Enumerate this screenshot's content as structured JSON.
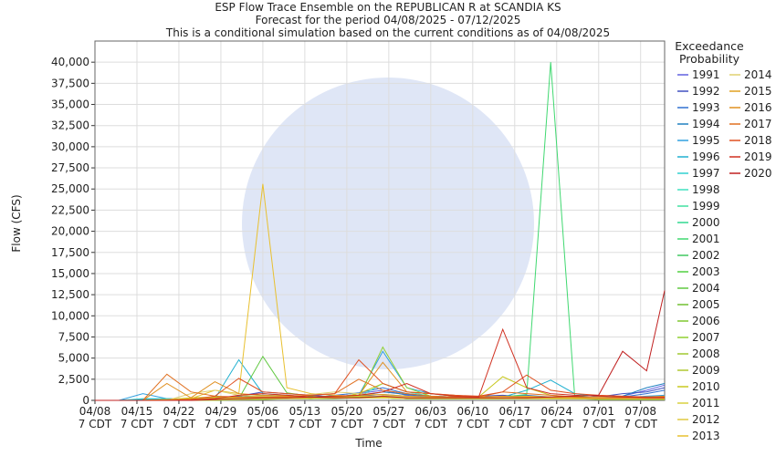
{
  "chart_data": {
    "type": "line",
    "title": "ESP Flow Trace Ensemble on the REPUBLICAN R at SCANDIA KS",
    "subtitle": "Forecast for the period 04/08/2025 - 07/12/2025",
    "note": "This is a conditional simulation based on the current conditions as of 04/08/2025",
    "x_label": "Time",
    "y_label": "Flow (CFS)",
    "legend_title": "Exceedance Probability",
    "grid": true,
    "xlim": [
      "04/08",
      "07/12"
    ],
    "xticks": [
      "04/08",
      "04/15",
      "04/22",
      "04/29",
      "05/06",
      "05/13",
      "05/20",
      "05/27",
      "06/03",
      "06/10",
      "06/17",
      "06/24",
      "07/01",
      "07/08"
    ],
    "xtick_time": "7 CDT",
    "ylim": [
      0,
      42500
    ],
    "yticks": [
      0,
      {
        "value": 2500,
        "label": "2,500"
      },
      {
        "value": 5000,
        "label": "5,000"
      },
      {
        "value": 7500,
        "label": "7,500"
      },
      {
        "value": 10000,
        "label": "10,000"
      },
      {
        "value": 12500,
        "label": "12,500"
      },
      {
        "value": 15000,
        "label": "15,000"
      },
      {
        "value": 17500,
        "label": "17,500"
      },
      {
        "value": 20000,
        "label": "20,000"
      },
      {
        "value": 22500,
        "label": "22,500"
      },
      {
        "value": 25000,
        "label": "25,000"
      },
      {
        "value": 27500,
        "label": "27,500"
      },
      {
        "value": 30000,
        "label": "30,000"
      },
      {
        "value": 32500,
        "label": "32,500"
      },
      {
        "value": 35000,
        "label": "35,000"
      },
      {
        "value": 37500,
        "label": "37,500"
      },
      {
        "value": 40000,
        "label": "40,000"
      }
    ],
    "x": [
      "04/08",
      "04/12",
      "04/16",
      "04/20",
      "04/24",
      "04/28",
      "05/02",
      "05/06",
      "05/10",
      "05/14",
      "05/18",
      "05/22",
      "05/26",
      "05/30",
      "06/03",
      "06/07",
      "06/11",
      "06/15",
      "06/19",
      "06/23",
      "06/27",
      "07/01",
      "07/05",
      "07/09",
      "07/12"
    ],
    "series": [
      {
        "name": "1991",
        "color": "#6060e0",
        "values": [
          0,
          0,
          100,
          200,
          150,
          300,
          400,
          600,
          500,
          400,
          300,
          800,
          1200,
          600,
          400,
          300,
          200,
          300,
          400,
          300,
          200,
          300,
          500,
          1200,
          1800
        ]
      },
      {
        "name": "1992",
        "color": "#4050c0",
        "values": [
          0,
          0,
          50,
          100,
          200,
          300,
          500,
          1000,
          800,
          600,
          400,
          500,
          700,
          500,
          400,
          300,
          500,
          600,
          400,
          300,
          300,
          400,
          800,
          1000,
          1500
        ]
      },
      {
        "name": "1993",
        "color": "#3070d0",
        "values": [
          0,
          0,
          0,
          100,
          100,
          200,
          300,
          500,
          400,
          300,
          600,
          900,
          1500,
          800,
          500,
          400,
          300,
          400,
          600,
          400,
          300,
          200,
          400,
          800,
          1200
        ]
      },
      {
        "name": "1994",
        "color": "#2080c0",
        "values": [
          0,
          0,
          0,
          0,
          100,
          200,
          300,
          400,
          300,
          300,
          400,
          500,
          1000,
          700,
          500,
          400,
          300,
          300,
          300,
          400,
          300,
          300,
          500,
          1500,
          2000
        ]
      },
      {
        "name": "1995",
        "color": "#30a0e0",
        "values": [
          0,
          0,
          800,
          200,
          100,
          200,
          300,
          400,
          300,
          200,
          400,
          600,
          5800,
          1500,
          800,
          500,
          400,
          300,
          300,
          400,
          300,
          200,
          300,
          500,
          600
        ]
      },
      {
        "name": "1996",
        "color": "#20b0d0",
        "values": [
          0,
          0,
          100,
          100,
          100,
          200,
          4800,
          800,
          600,
          400,
          300,
          300,
          500,
          400,
          400,
          300,
          300,
          400,
          1200,
          2400,
          800,
          400,
          300,
          400,
          500
        ]
      },
      {
        "name": "1997",
        "color": "#30d0d0",
        "values": [
          0,
          0,
          200,
          200,
          100,
          100,
          200,
          300,
          300,
          300,
          300,
          400,
          500,
          300,
          300,
          200,
          300,
          300,
          300,
          400,
          300,
          200,
          200,
          300,
          400
        ]
      },
      {
        "name": "1998",
        "color": "#40e0c0",
        "values": [
          0,
          0,
          0,
          0,
          0,
          100,
          200,
          200,
          200,
          300,
          300,
          400,
          2000,
          1000,
          500,
          300,
          300,
          300,
          300,
          400,
          300,
          300,
          300,
          300,
          300
        ]
      },
      {
        "name": "1999",
        "color": "#40e0a0",
        "values": [
          0,
          0,
          0,
          0,
          100,
          100,
          100,
          200,
          300,
          400,
          500,
          400,
          400,
          300,
          200,
          200,
          200,
          300,
          300,
          400,
          300,
          200,
          200,
          300,
          300
        ]
      },
      {
        "name": "2000",
        "color": "#30d890",
        "values": [
          0,
          0,
          0,
          100,
          200,
          300,
          400,
          600,
          500,
          400,
          300,
          300,
          300,
          200,
          200,
          200,
          300,
          300,
          300,
          300,
          300,
          200,
          200,
          200,
          200
        ]
      },
      {
        "name": "2001",
        "color": "#40d870",
        "values": [
          0,
          0,
          0,
          0,
          100,
          200,
          300,
          400,
          500,
          300,
          300,
          400,
          400,
          300,
          200,
          200,
          300,
          400,
          700,
          40000,
          500,
          300,
          200,
          200,
          200
        ]
      },
      {
        "name": "2002",
        "color": "#40c860",
        "values": [
          0,
          0,
          0,
          0,
          0,
          100,
          200,
          300,
          300,
          400,
          500,
          300,
          300,
          200,
          200,
          200,
          200,
          200,
          200,
          300,
          200,
          200,
          200,
          200,
          200
        ]
      },
      {
        "name": "2003",
        "color": "#50d040",
        "values": [
          0,
          0,
          0,
          0,
          0,
          0,
          100,
          200,
          300,
          300,
          400,
          500,
          400,
          300,
          300,
          200,
          200,
          200,
          300,
          200,
          200,
          200,
          200,
          200,
          200
        ]
      },
      {
        "name": "2004",
        "color": "#60c840",
        "values": [
          0,
          0,
          0,
          0,
          0,
          100,
          200,
          5200,
          900,
          500,
          300,
          300,
          300,
          200,
          200,
          200,
          200,
          200,
          200,
          200,
          200,
          200,
          200,
          200,
          200
        ]
      },
      {
        "name": "2005",
        "color": "#70c030",
        "values": [
          0,
          0,
          0,
          0,
          100,
          100,
          200,
          300,
          300,
          300,
          300,
          400,
          300,
          200,
          200,
          200,
          200,
          300,
          400,
          300,
          300,
          200,
          200,
          200,
          200
        ]
      },
      {
        "name": "2006",
        "color": "#80c830",
        "values": [
          0,
          0,
          0,
          0,
          100,
          200,
          300,
          400,
          300,
          200,
          200,
          300,
          300,
          200,
          200,
          200,
          200,
          200,
          300,
          200,
          200,
          200,
          200,
          200,
          100
        ]
      },
      {
        "name": "2007",
        "color": "#90d030",
        "values": [
          0,
          0,
          0,
          100,
          100,
          200,
          200,
          300,
          300,
          400,
          300,
          300,
          6300,
          1500,
          500,
          300,
          300,
          300,
          200,
          200,
          200,
          200,
          200,
          200,
          200
        ]
      },
      {
        "name": "2008",
        "color": "#a0c830",
        "values": [
          0,
          0,
          0,
          0,
          0,
          0,
          100,
          100,
          200,
          200,
          300,
          300,
          300,
          300,
          200,
          200,
          200,
          200,
          300,
          300,
          200,
          100,
          100,
          100,
          100
        ]
      },
      {
        "name": "2009",
        "color": "#b0c830",
        "values": [
          0,
          0,
          0,
          0,
          100,
          200,
          300,
          300,
          200,
          200,
          300,
          500,
          400,
          300,
          200,
          200,
          200,
          200,
          200,
          200,
          200,
          200,
          200,
          200,
          200
        ]
      },
      {
        "name": "2010",
        "color": "#c8c820",
        "values": [
          0,
          0,
          0,
          100,
          300,
          400,
          300,
          500,
          600,
          400,
          300,
          800,
          2000,
          1000,
          800,
          500,
          400,
          2800,
          1500,
          600,
          400,
          300,
          300,
          400,
          400
        ]
      },
      {
        "name": "2011",
        "color": "#d8d040",
        "values": [
          0,
          0,
          0,
          0,
          100,
          200,
          300,
          400,
          400,
          400,
          300,
          300,
          300,
          300,
          300,
          300,
          200,
          200,
          200,
          200,
          200,
          200,
          200,
          200,
          200
        ]
      },
      {
        "name": "2012",
        "color": "#e0c840",
        "values": [
          0,
          0,
          0,
          0,
          0,
          100,
          100,
          200,
          200,
          300,
          300,
          300,
          300,
          200,
          200,
          200,
          200,
          200,
          200,
          200,
          200,
          200,
          200,
          200,
          200
        ]
      },
      {
        "name": "2013",
        "color": "#e8c030",
        "values": [
          0,
          0,
          0,
          0,
          200,
          1200,
          800,
          25600,
          1500,
          800,
          600,
          500,
          400,
          400,
          300,
          300,
          300,
          400,
          500,
          400,
          300,
          300,
          200,
          200,
          200
        ]
      },
      {
        "name": "2014",
        "color": "#e0d070",
        "values": [
          0,
          0,
          0,
          0,
          800,
          1200,
          600,
          500,
          500,
          700,
          1000,
          800,
          600,
          400,
          300,
          300,
          300,
          400,
          300,
          300,
          300,
          400,
          300,
          300,
          300
        ]
      },
      {
        "name": "2015",
        "color": "#e0a020",
        "values": [
          0,
          0,
          0,
          100,
          200,
          300,
          400,
          400,
          300,
          300,
          400,
          600,
          700,
          500,
          400,
          300,
          300,
          300,
          300,
          300,
          300,
          300,
          300,
          300,
          300
        ]
      },
      {
        "name": "2016",
        "color": "#e09020",
        "values": [
          0,
          0,
          0,
          2000,
          300,
          2200,
          800,
          600,
          500,
          400,
          400,
          600,
          4500,
          1000,
          800,
          600,
          400,
          500,
          400,
          400,
          400,
          300,
          300,
          400,
          500
        ]
      },
      {
        "name": "2017",
        "color": "#e07020",
        "values": [
          0,
          0,
          0,
          3100,
          1000,
          500,
          400,
          400,
          400,
          600,
          800,
          2500,
          1200,
          800,
          500,
          400,
          400,
          1000,
          800,
          600,
          400,
          300,
          300,
          300,
          300
        ]
      },
      {
        "name": "2018",
        "color": "#e05020",
        "values": [
          0,
          0,
          0,
          0,
          100,
          500,
          2600,
          1000,
          800,
          600,
          800,
          4800,
          2000,
          1000,
          800,
          600,
          500,
          1000,
          3000,
          1200,
          800,
          600,
          500,
          400,
          400
        ]
      },
      {
        "name": "2019",
        "color": "#d03020",
        "values": [
          0,
          0,
          0,
          0,
          0,
          200,
          600,
          800,
          600,
          400,
          500,
          600,
          1000,
          2000,
          800,
          500,
          400,
          8400,
          1500,
          800,
          600,
          500,
          400,
          300,
          300
        ]
      },
      {
        "name": "2020",
        "color": "#c02020",
        "values": [
          0,
          0,
          0,
          0,
          0,
          100,
          200,
          300,
          300,
          400,
          300,
          300,
          500,
          300,
          300,
          300,
          300,
          300,
          300,
          400,
          500,
          600,
          5800,
          3500,
          13000
        ]
      }
    ]
  }
}
